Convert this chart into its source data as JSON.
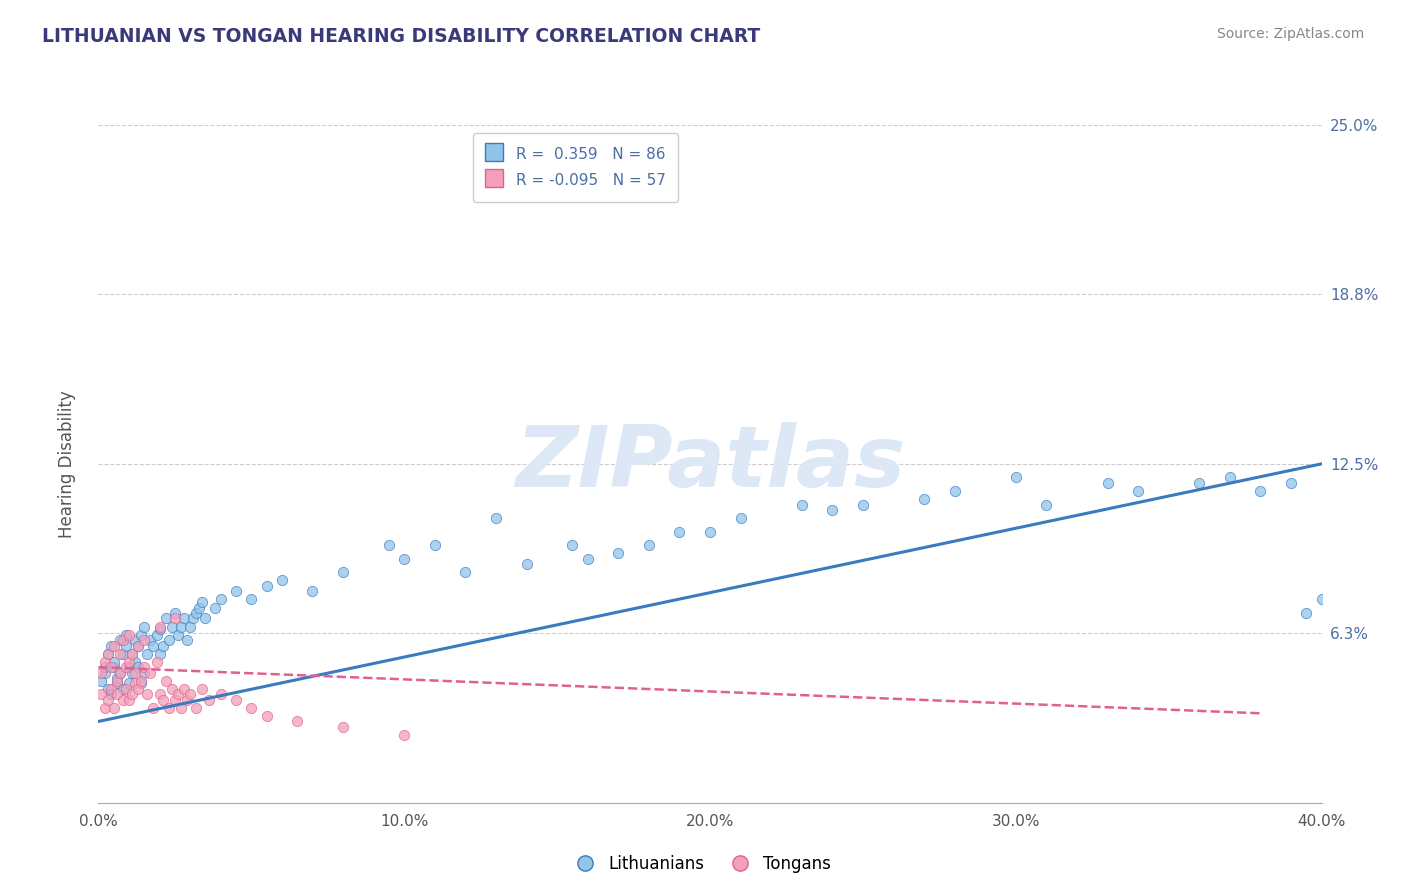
{
  "title": "LITHUANIAN VS TONGAN HEARING DISABILITY CORRELATION CHART",
  "source_text": "Source: ZipAtlas.com",
  "ylabel": "Hearing Disability",
  "xlim": [
    0.0,
    0.4
  ],
  "ylim": [
    0.0,
    0.25
  ],
  "yticks": [
    0.0,
    0.0625,
    0.125,
    0.1875,
    0.25
  ],
  "ytick_labels": [
    "",
    "6.3%",
    "12.5%",
    "18.8%",
    "25.0%"
  ],
  "xtick_labels": [
    "0.0%",
    "10.0%",
    "20.0%",
    "30.0%",
    "40.0%"
  ],
  "xticks": [
    0.0,
    0.1,
    0.2,
    0.3,
    0.4
  ],
  "legend_R_blue": "R =  0.359",
  "legend_N_blue": "N = 86",
  "legend_R_pink": "R = -0.095",
  "legend_N_pink": "N = 57",
  "color_blue": "#90c4e8",
  "color_pink": "#f4a0b8",
  "color_blue_line": "#3a7abf",
  "color_pink_line": "#e06090",
  "color_title": "#3a3a7a",
  "color_source": "#888888",
  "color_ytick_label": "#4a6fa5",
  "color_grid": "#cccccc",
  "color_axis": "#aaaaaa",
  "watermark_text": "ZIPatlas",
  "watermark_color": "#dce8f5",
  "blue_line_x": [
    0.0,
    0.4
  ],
  "blue_line_y": [
    0.03,
    0.125
  ],
  "pink_line_x": [
    0.0,
    0.38
  ],
  "pink_line_y": [
    0.05,
    0.033
  ],
  "blue_scatter_x": [
    0.001,
    0.002,
    0.002,
    0.003,
    0.003,
    0.004,
    0.004,
    0.005,
    0.005,
    0.006,
    0.006,
    0.007,
    0.007,
    0.008,
    0.008,
    0.009,
    0.009,
    0.01,
    0.01,
    0.011,
    0.011,
    0.012,
    0.012,
    0.013,
    0.013,
    0.014,
    0.014,
    0.015,
    0.015,
    0.016,
    0.017,
    0.018,
    0.019,
    0.02,
    0.02,
    0.021,
    0.022,
    0.023,
    0.024,
    0.025,
    0.026,
    0.027,
    0.028,
    0.029,
    0.03,
    0.031,
    0.032,
    0.033,
    0.034,
    0.035,
    0.038,
    0.04,
    0.045,
    0.05,
    0.055,
    0.06,
    0.07,
    0.08,
    0.095,
    0.11,
    0.13,
    0.155,
    0.17,
    0.19,
    0.21,
    0.23,
    0.25,
    0.28,
    0.31,
    0.34,
    0.36,
    0.37,
    0.38,
    0.39,
    0.395,
    0.4,
    0.33,
    0.3,
    0.27,
    0.24,
    0.2,
    0.18,
    0.16,
    0.14,
    0.12,
    0.1
  ],
  "blue_scatter_y": [
    0.045,
    0.048,
    0.05,
    0.042,
    0.055,
    0.04,
    0.058,
    0.05,
    0.052,
    0.044,
    0.046,
    0.048,
    0.06,
    0.042,
    0.055,
    0.058,
    0.062,
    0.044,
    0.05,
    0.048,
    0.055,
    0.052,
    0.06,
    0.05,
    0.058,
    0.044,
    0.062,
    0.048,
    0.065,
    0.055,
    0.06,
    0.058,
    0.062,
    0.064,
    0.055,
    0.058,
    0.068,
    0.06,
    0.065,
    0.07,
    0.062,
    0.065,
    0.068,
    0.06,
    0.065,
    0.068,
    0.07,
    0.072,
    0.074,
    0.068,
    0.072,
    0.075,
    0.078,
    0.075,
    0.08,
    0.082,
    0.078,
    0.085,
    0.095,
    0.095,
    0.105,
    0.095,
    0.092,
    0.1,
    0.105,
    0.11,
    0.11,
    0.115,
    0.11,
    0.115,
    0.118,
    0.12,
    0.115,
    0.118,
    0.07,
    0.075,
    0.118,
    0.12,
    0.112,
    0.108,
    0.1,
    0.095,
    0.09,
    0.088,
    0.085,
    0.09
  ],
  "pink_scatter_x": [
    0.001,
    0.001,
    0.002,
    0.002,
    0.003,
    0.003,
    0.004,
    0.004,
    0.005,
    0.005,
    0.006,
    0.006,
    0.007,
    0.007,
    0.008,
    0.008,
    0.009,
    0.009,
    0.01,
    0.01,
    0.011,
    0.011,
    0.012,
    0.012,
    0.013,
    0.013,
    0.014,
    0.015,
    0.016,
    0.017,
    0.018,
    0.019,
    0.02,
    0.021,
    0.022,
    0.023,
    0.024,
    0.025,
    0.026,
    0.027,
    0.028,
    0.029,
    0.03,
    0.032,
    0.034,
    0.036,
    0.04,
    0.045,
    0.05,
    0.055,
    0.065,
    0.08,
    0.1,
    0.02,
    0.025,
    0.015,
    0.01
  ],
  "pink_scatter_y": [
    0.04,
    0.048,
    0.035,
    0.052,
    0.038,
    0.055,
    0.042,
    0.05,
    0.035,
    0.058,
    0.04,
    0.045,
    0.048,
    0.055,
    0.038,
    0.06,
    0.042,
    0.05,
    0.038,
    0.052,
    0.04,
    0.055,
    0.044,
    0.048,
    0.042,
    0.058,
    0.045,
    0.05,
    0.04,
    0.048,
    0.035,
    0.052,
    0.04,
    0.038,
    0.045,
    0.035,
    0.042,
    0.038,
    0.04,
    0.035,
    0.042,
    0.038,
    0.04,
    0.035,
    0.042,
    0.038,
    0.04,
    0.038,
    0.035,
    0.032,
    0.03,
    0.028,
    0.025,
    0.065,
    0.068,
    0.06,
    0.062
  ]
}
